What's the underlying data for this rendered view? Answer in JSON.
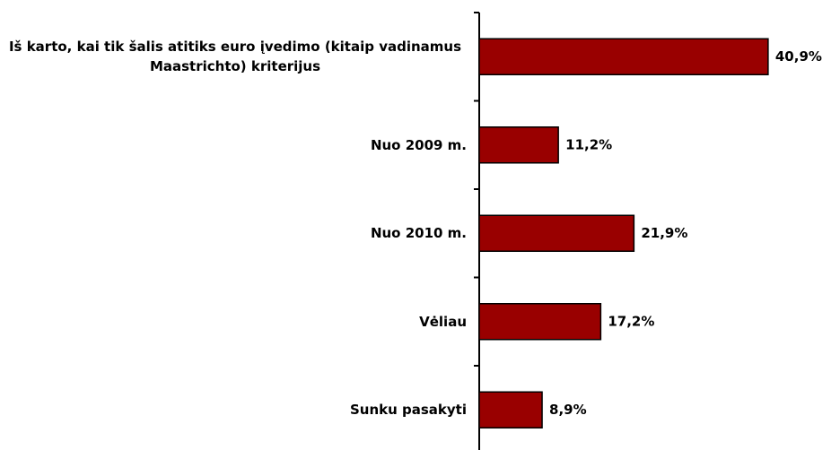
{
  "chart_data": {
    "type": "bar",
    "orientation": "horizontal",
    "categories": [
      "Iš karto, kai tik šalis atitiks euro įvedimo (kitaip vadinamus Maastrichto) kriterijus",
      "Nuo 2009 m.",
      "Nuo 2010 m.",
      "Vėliau",
      "Sunku pasakyti"
    ],
    "values": [
      40.9,
      11.2,
      21.9,
      17.2,
      8.9
    ],
    "value_labels": [
      "40,9%",
      "11,2%",
      "21,9%",
      "17,2%",
      "8,9%"
    ],
    "color": "#990000"
  }
}
